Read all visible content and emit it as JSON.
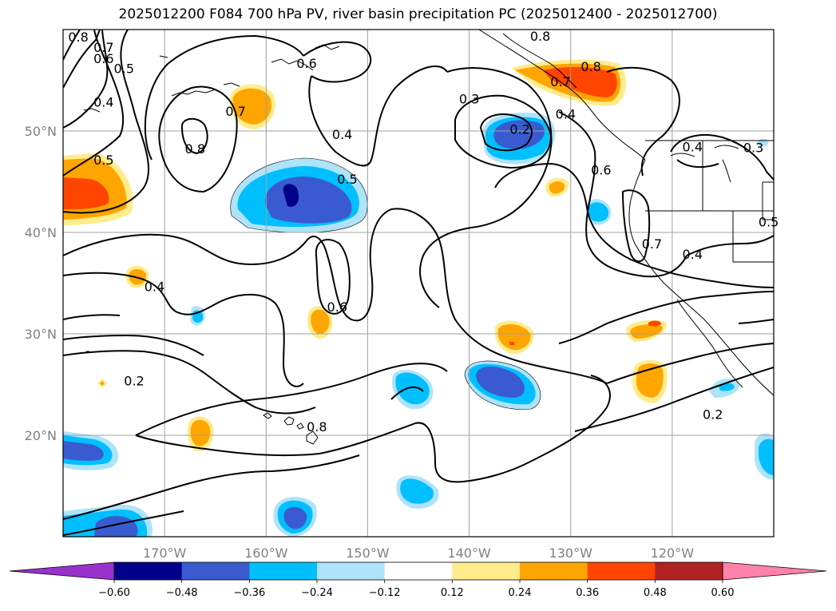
{
  "title": "2025012200 F084 700 hPa PV, river basin precipitation PC (2025012400 - 2025012700)",
  "map": {
    "lon_range": [
      -180,
      -110
    ],
    "lat_range": [
      10,
      60
    ],
    "lon_ticks": [
      {
        "lon": -170,
        "label": "170°W"
      },
      {
        "lon": -160,
        "label": "160°W"
      },
      {
        "lon": -150,
        "label": "150°W"
      },
      {
        "lon": -140,
        "label": "140°W"
      },
      {
        "lon": -130,
        "label": "130°W"
      },
      {
        "lon": -120,
        "label": "120°W"
      }
    ],
    "lat_ticks": [
      {
        "lat": 20,
        "label": "20°N"
      },
      {
        "lat": 30,
        "label": "30°N"
      },
      {
        "lat": 40,
        "label": "40°N"
      },
      {
        "lat": 50,
        "label": "50°N"
      }
    ],
    "grid": true
  },
  "contour_labels": [
    {
      "lon": -178.5,
      "lat": 59.2,
      "text": "0.8"
    },
    {
      "lon": -176,
      "lat": 58.2,
      "text": "0.7"
    },
    {
      "lon": -176,
      "lat": 57.1,
      "text": "0.6"
    },
    {
      "lon": -174,
      "lat": 56.1,
      "text": "0.5"
    },
    {
      "lon": -176,
      "lat": 52.8,
      "text": "0.4"
    },
    {
      "lon": -176,
      "lat": 47.1,
      "text": "0.5"
    },
    {
      "lon": -163,
      "lat": 51.9,
      "text": "0.7"
    },
    {
      "lon": -167,
      "lat": 48.2,
      "text": "0.8"
    },
    {
      "lon": -156,
      "lat": 56.6,
      "text": "0.6"
    },
    {
      "lon": -152.5,
      "lat": 49.6,
      "text": "0.4"
    },
    {
      "lon": -152,
      "lat": 45.2,
      "text": "0.5"
    },
    {
      "lon": -153,
      "lat": 32.6,
      "text": "0.6"
    },
    {
      "lon": -171,
      "lat": 34.6,
      "text": "0.4"
    },
    {
      "lon": -173,
      "lat": 25.3,
      "text": "0.2"
    },
    {
      "lon": -155,
      "lat": 20.8,
      "text": "0.8"
    },
    {
      "lon": -140,
      "lat": 53.1,
      "text": "0.3"
    },
    {
      "lon": -135,
      "lat": 50.1,
      "text": "0.2"
    },
    {
      "lon": -133,
      "lat": 59.3,
      "text": "0.8"
    },
    {
      "lon": -128,
      "lat": 56.3,
      "text": "0.8"
    },
    {
      "lon": -131,
      "lat": 54.8,
      "text": "0.7"
    },
    {
      "lon": -130.5,
      "lat": 51.6,
      "text": "0.4"
    },
    {
      "lon": -127,
      "lat": 46.1,
      "text": "0.6"
    },
    {
      "lon": -122,
      "lat": 38.8,
      "text": "0.7"
    },
    {
      "lon": -118,
      "lat": 37.8,
      "text": "0.4"
    },
    {
      "lon": -112,
      "lat": 48.3,
      "text": "0.3"
    },
    {
      "lon": -110.5,
      "lat": 41,
      "text": "0.5"
    },
    {
      "lon": -118,
      "lat": 48.4,
      "text": "0.4"
    },
    {
      "lon": -116,
      "lat": 22,
      "text": "0.2"
    }
  ],
  "colorbar": {
    "boundaries": [
      -0.72,
      -0.6,
      -0.48,
      -0.36,
      -0.24,
      -0.12,
      0.12,
      0.24,
      0.36,
      0.48,
      0.6,
      0.72
    ],
    "colors": [
      "#9932cc",
      "#00008b",
      "#3a5bd0",
      "#00bfff",
      "#aee3fa",
      "#ffffff",
      "#ffec8b",
      "#ffa500",
      "#ff4500",
      "#b22222",
      "#ff82ab"
    ],
    "under_color": "#9932cc",
    "over_color": "#ff82ab",
    "tick_labels": [
      "−0.60",
      "−0.48",
      "−0.36",
      "−0.24",
      "−0.12",
      "0.12",
      "0.24",
      "0.36",
      "0.48",
      "0.60"
    ]
  }
}
